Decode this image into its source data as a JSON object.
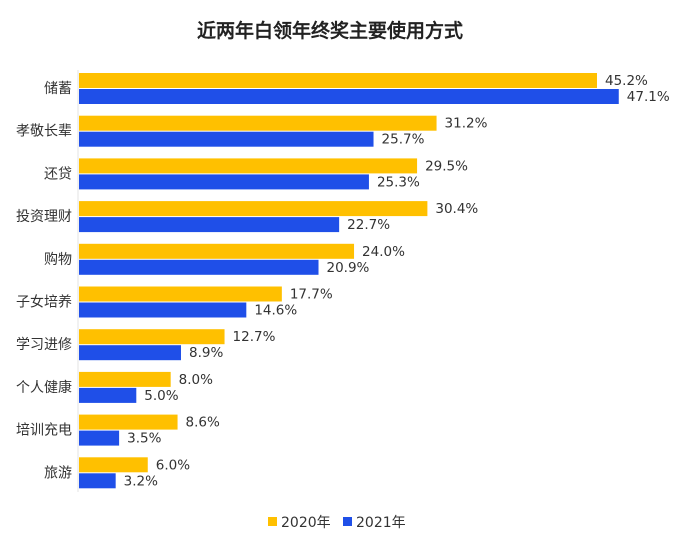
{
  "chart_data": {
    "type": "bar",
    "orientation": "horizontal",
    "title": "近两年白领年终奖主要使用方式",
    "categories": [
      "储蓄",
      "孝敬长辈",
      "还贷",
      "投资理财",
      "购物",
      "子女培养",
      "学习进修",
      "个人健康",
      "培训充电",
      "旅游"
    ],
    "series": [
      {
        "name": "2020年",
        "color": "#FFC000",
        "values": [
          45.2,
          31.2,
          29.5,
          30.4,
          24.0,
          17.7,
          12.7,
          8.0,
          8.6,
          6.0
        ]
      },
      {
        "name": "2021年",
        "color": "#1F4FE8",
        "values": [
          47.1,
          25.7,
          25.3,
          22.7,
          20.9,
          14.6,
          8.9,
          5.0,
          3.5,
          3.2
        ]
      }
    ],
    "value_suffix": "%",
    "xlim": [
      0,
      50
    ],
    "grid": false,
    "legend": "bottom-right"
  }
}
